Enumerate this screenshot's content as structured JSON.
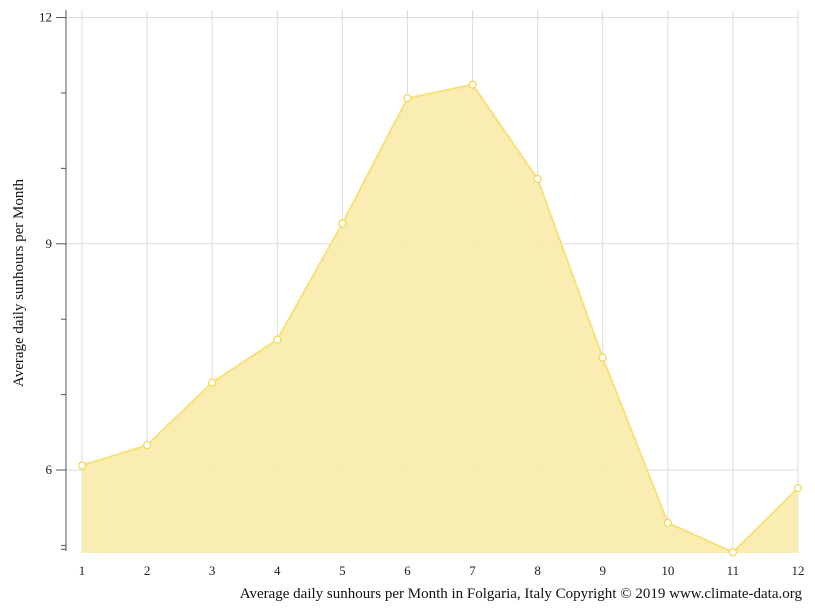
{
  "chart_data": {
    "type": "area",
    "title": "",
    "xlabel": "",
    "ylabel": "Average daily sunhours per Month",
    "caption": "Average daily sunhours per Month in Folgaria, Italy Copyright © 2019 www.climate-data.org",
    "categories": [
      "1",
      "2",
      "3",
      "4",
      "5",
      "6",
      "7",
      "8",
      "9",
      "10",
      "11",
      "12"
    ],
    "values": [
      6.06,
      6.33,
      7.16,
      7.73,
      9.27,
      10.93,
      11.11,
      9.86,
      7.49,
      5.3,
      4.91,
      5.76
    ],
    "yticks": [
      "6",
      "9",
      "12"
    ],
    "ylim": [
      4.9,
      12.1
    ],
    "grid": true,
    "legend": "none",
    "colors": {
      "fill": "#f9eba8",
      "line": "#f7e27a",
      "marker_stroke": "#f3d85a",
      "grid": "#dddddd",
      "axis": "#555555"
    }
  }
}
